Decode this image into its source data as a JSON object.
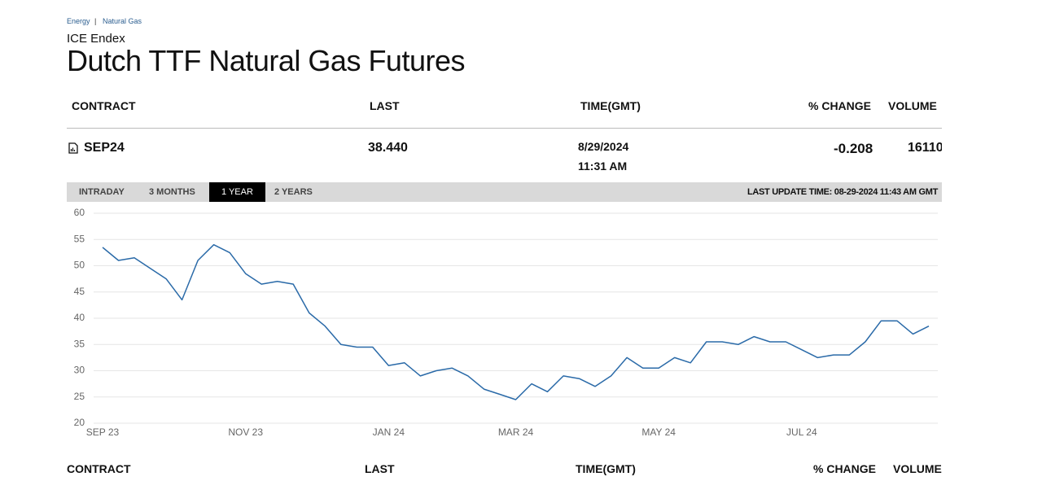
{
  "header": {
    "breadcrumbs": [
      "Energy",
      "Natural Gas"
    ],
    "separator": "|",
    "exchange": "ICE Endex",
    "title": "Dutch TTF Natural Gas Futures"
  },
  "table": {
    "columns": [
      "CONTRACT",
      "LAST",
      "TIME(GMT)",
      "% CHANGE",
      "VOLUME"
    ],
    "rows": [
      {
        "contract": "SEP24",
        "last": "38.440",
        "date": "8/29/2024",
        "time": "11:31 AM",
        "change": "-0.208",
        "volume": "16110"
      }
    ]
  },
  "tabs": {
    "items": [
      "INTRADAY",
      "3 MONTHS",
      "1 YEAR",
      "2 YEARS"
    ],
    "active": 2,
    "last_update": "LAST UPDATE TIME: 08-29-2024 11:43 AM GMT"
  },
  "chart_data": {
    "type": "line",
    "color": "#2a6aa8",
    "categories": [
      "SEP 23",
      null,
      null,
      null,
      null,
      null,
      null,
      null,
      null,
      "NOV 23",
      null,
      null,
      null,
      null,
      null,
      null,
      null,
      null,
      "JAN 24",
      null,
      null,
      null,
      null,
      null,
      null,
      null,
      "MAR 24",
      null,
      null,
      null,
      null,
      null,
      null,
      null,
      null,
      "MAY 24",
      null,
      null,
      null,
      null,
      null,
      null,
      null,
      null,
      "JUL 24",
      null,
      null,
      null,
      null,
      null,
      null,
      null,
      null
    ],
    "values": [
      53.5,
      51,
      51.5,
      49.5,
      47.5,
      43.5,
      51,
      54,
      52.5,
      48.5,
      46.5,
      47,
      46.5,
      41,
      38.5,
      35,
      34.5,
      34.5,
      31,
      31.5,
      29,
      30,
      30.5,
      29,
      26.5,
      25.5,
      24.5,
      27.5,
      26,
      29,
      28.5,
      27,
      29,
      32.5,
      30.5,
      30.5,
      32.5,
      31.5,
      35.5,
      35.5,
      35,
      36.5,
      35.5,
      35.5,
      34,
      32.5,
      33,
      33,
      35.5,
      39.5,
      39.5,
      37,
      38.5
    ],
    "ylim": [
      20,
      60
    ],
    "yticks": [
      20,
      25,
      30,
      35,
      40,
      45,
      50,
      55,
      60
    ],
    "grid": true
  }
}
